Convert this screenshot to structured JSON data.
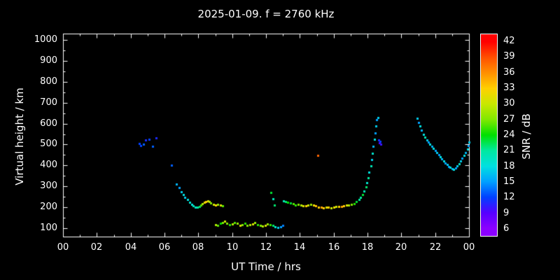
{
  "chart_data": {
    "type": "scatter",
    "title": "2025-01-09. f = 2760 kHz",
    "xlabel": "UT Time / hrs",
    "ylabel": "Virtual height / km",
    "xlim": [
      0,
      24
    ],
    "ylim": [
      60,
      1030
    ],
    "x_ticks": [
      0,
      2,
      4,
      6,
      8,
      10,
      12,
      14,
      16,
      18,
      20,
      22,
      24
    ],
    "x_tick_labels": [
      "00",
      "02",
      "04",
      "06",
      "08",
      "10",
      "12",
      "14",
      "16",
      "18",
      "20",
      "22",
      "00"
    ],
    "y_ticks": [
      100,
      200,
      300,
      400,
      500,
      600,
      700,
      800,
      900,
      1000
    ],
    "grid": false,
    "colorbar": {
      "label": "SNR / dB",
      "range": [
        4.5,
        43.5
      ],
      "ticks": [
        6,
        9,
        12,
        15,
        18,
        21,
        24,
        27,
        30,
        33,
        36,
        39,
        42
      ],
      "stops": [
        "#8b00ff",
        "#5500ff",
        "#0040ff",
        "#00a0ff",
        "#00e0e0",
        "#00e8a0",
        "#00e000",
        "#80e800",
        "#c8e800",
        "#ffd000",
        "#ff9000",
        "#ff5000",
        "#ff0000"
      ]
    },
    "points_format": [
      "ut_hours",
      "virtual_height_km",
      "snr_db"
    ],
    "points": [
      [
        4.5,
        505,
        12
      ],
      [
        4.6,
        495,
        12
      ],
      [
        4.75,
        500,
        13
      ],
      [
        4.9,
        520,
        11
      ],
      [
        5.1,
        525,
        12
      ],
      [
        5.3,
        490,
        13
      ],
      [
        5.5,
        530,
        11
      ],
      [
        6.4,
        400,
        13
      ],
      [
        6.7,
        310,
        16
      ],
      [
        6.85,
        295,
        15
      ],
      [
        7.0,
        275,
        17
      ],
      [
        7.1,
        260,
        18
      ],
      [
        7.2,
        248,
        17
      ],
      [
        7.35,
        238,
        18
      ],
      [
        7.5,
        225,
        19
      ],
      [
        7.6,
        215,
        18
      ],
      [
        7.7,
        208,
        20
      ],
      [
        7.8,
        202,
        19
      ],
      [
        7.95,
        200,
        21
      ],
      [
        8.05,
        205,
        22
      ],
      [
        8.15,
        212,
        26
      ],
      [
        8.25,
        218,
        29
      ],
      [
        8.35,
        224,
        32
      ],
      [
        8.45,
        228,
        33
      ],
      [
        8.55,
        230,
        31
      ],
      [
        8.65,
        226,
        29
      ],
      [
        8.75,
        220,
        27
      ],
      [
        8.9,
        214,
        30
      ],
      [
        9.0,
        210,
        33
      ],
      [
        9.15,
        213,
        28
      ],
      [
        9.3,
        210,
        31
      ],
      [
        9.45,
        208,
        26
      ],
      [
        9.0,
        118,
        29
      ],
      [
        9.15,
        112,
        26
      ],
      [
        9.3,
        122,
        24
      ],
      [
        9.45,
        128,
        27
      ],
      [
        9.55,
        132,
        30
      ],
      [
        9.7,
        125,
        27
      ],
      [
        9.85,
        116,
        25
      ],
      [
        10.0,
        120,
        29
      ],
      [
        10.15,
        128,
        26
      ],
      [
        10.3,
        124,
        28
      ],
      [
        10.45,
        114,
        31
      ],
      [
        10.6,
        118,
        27
      ],
      [
        10.75,
        122,
        25
      ],
      [
        10.9,
        112,
        27
      ],
      [
        11.05,
        116,
        29
      ],
      [
        11.2,
        121,
        31
      ],
      [
        11.35,
        126,
        28
      ],
      [
        11.5,
        118,
        25
      ],
      [
        11.65,
        112,
        27
      ],
      [
        11.8,
        109,
        29
      ],
      [
        11.95,
        114,
        31
      ],
      [
        12.1,
        119,
        28
      ],
      [
        12.25,
        116,
        25
      ],
      [
        12.4,
        112,
        22
      ],
      [
        12.55,
        108,
        19
      ],
      [
        12.7,
        105,
        17
      ],
      [
        12.85,
        108,
        15
      ],
      [
        13.0,
        112,
        14
      ],
      [
        12.3,
        272,
        23
      ],
      [
        12.4,
        242,
        20
      ],
      [
        12.5,
        212,
        22
      ],
      [
        13.05,
        232,
        20
      ],
      [
        13.15,
        228,
        22
      ],
      [
        13.3,
        224,
        24
      ],
      [
        13.45,
        219,
        23
      ],
      [
        13.6,
        216,
        26
      ],
      [
        13.75,
        212,
        25
      ],
      [
        13.9,
        214,
        27
      ],
      [
        14.05,
        211,
        29
      ],
      [
        14.2,
        208,
        31
      ],
      [
        14.35,
        206,
        33
      ],
      [
        14.5,
        209,
        30
      ],
      [
        14.65,
        213,
        28
      ],
      [
        14.8,
        210,
        32
      ],
      [
        14.95,
        206,
        34
      ],
      [
        15.1,
        202,
        33
      ],
      [
        15.25,
        199,
        35
      ],
      [
        15.4,
        197,
        33
      ],
      [
        15.55,
        199,
        31
      ],
      [
        15.7,
        201,
        33
      ],
      [
        15.85,
        198,
        30
      ],
      [
        16.0,
        200,
        32
      ],
      [
        16.15,
        203,
        30
      ],
      [
        16.3,
        205,
        33
      ],
      [
        16.45,
        204,
        35
      ],
      [
        16.6,
        207,
        33
      ],
      [
        16.75,
        209,
        31
      ],
      [
        16.9,
        212,
        29
      ],
      [
        17.05,
        214,
        27
      ],
      [
        17.2,
        218,
        25
      ],
      [
        17.35,
        226,
        23
      ],
      [
        17.5,
        236,
        21
      ],
      [
        15.05,
        448,
        38
      ],
      [
        17.6,
        248,
        21
      ],
      [
        17.7,
        262,
        23
      ],
      [
        17.8,
        278,
        20
      ],
      [
        17.9,
        296,
        22
      ],
      [
        17.95,
        318,
        19
      ],
      [
        18.05,
        342,
        21
      ],
      [
        18.1,
        368,
        18
      ],
      [
        18.2,
        398,
        20
      ],
      [
        18.25,
        428,
        17
      ],
      [
        18.3,
        458,
        19
      ],
      [
        18.35,
        492,
        16
      ],
      [
        18.4,
        524,
        18
      ],
      [
        18.45,
        556,
        15
      ],
      [
        18.5,
        590,
        17
      ],
      [
        18.55,
        618,
        15
      ],
      [
        18.6,
        628,
        17
      ],
      [
        18.65,
        522,
        11
      ],
      [
        18.7,
        508,
        9
      ],
      [
        18.75,
        515,
        12
      ],
      [
        18.8,
        500,
        10
      ],
      [
        20.95,
        625,
        17
      ],
      [
        21.0,
        605,
        15
      ],
      [
        21.1,
        588,
        18
      ],
      [
        21.2,
        568,
        16
      ],
      [
        21.3,
        550,
        18
      ],
      [
        21.4,
        535,
        20
      ],
      [
        21.5,
        522,
        17
      ],
      [
        21.6,
        512,
        15
      ],
      [
        21.7,
        502,
        18
      ],
      [
        21.8,
        492,
        16
      ],
      [
        21.9,
        483,
        18
      ],
      [
        22.0,
        472,
        15
      ],
      [
        22.1,
        462,
        17
      ],
      [
        22.2,
        452,
        15
      ],
      [
        22.3,
        442,
        18
      ],
      [
        22.4,
        432,
        16
      ],
      [
        22.5,
        422,
        18
      ],
      [
        22.6,
        412,
        15
      ],
      [
        22.7,
        403,
        17
      ],
      [
        22.8,
        396,
        15
      ],
      [
        22.9,
        390,
        18
      ],
      [
        23.0,
        384,
        16
      ],
      [
        23.1,
        380,
        18
      ],
      [
        23.2,
        388,
        15
      ],
      [
        23.3,
        398,
        17
      ],
      [
        23.4,
        408,
        19
      ],
      [
        23.5,
        420,
        17
      ],
      [
        23.6,
        434,
        15
      ],
      [
        23.7,
        448,
        18
      ],
      [
        23.8,
        463,
        16
      ],
      [
        23.9,
        478,
        18
      ],
      [
        23.95,
        495,
        15
      ],
      [
        24.0,
        512,
        17
      ]
    ]
  },
  "colors": {
    "background": "#000000",
    "foreground": "#ffffff"
  }
}
